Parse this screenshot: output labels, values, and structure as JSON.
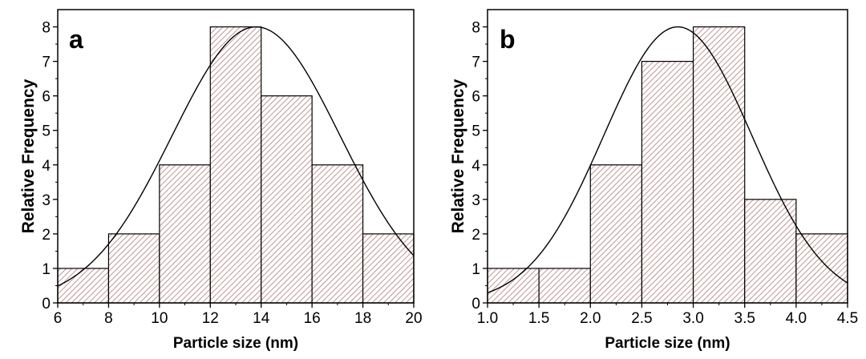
{
  "chart_data": [
    {
      "type": "bar",
      "panel_label": "a",
      "xlabel": "Particle size (nm)",
      "ylabel": "Relative Frequency",
      "xlim": [
        6,
        20
      ],
      "ylim": [
        0,
        8.5
      ],
      "xticks": [
        "6",
        "8",
        "10",
        "12",
        "14",
        "16",
        "18",
        "20"
      ],
      "yticks": [
        "0",
        "1",
        "2",
        "3",
        "4",
        "5",
        "6",
        "7",
        "8"
      ],
      "bins": [
        {
          "from": 6,
          "to": 8,
          "value": 1
        },
        {
          "from": 8,
          "to": 10,
          "value": 2
        },
        {
          "from": 10,
          "to": 12,
          "value": 4
        },
        {
          "from": 12,
          "to": 14,
          "value": 8
        },
        {
          "from": 14,
          "to": 16,
          "value": 6
        },
        {
          "from": 16,
          "to": 18,
          "value": 4
        },
        {
          "from": 18,
          "to": 20,
          "value": 2
        }
      ],
      "fit_curve": {
        "type": "gaussian",
        "peak_x": 13.8,
        "peak_y": 8.0,
        "sigma": 3.3
      },
      "fill_color": "#b07a7a",
      "grid": false
    },
    {
      "type": "bar",
      "panel_label": "b",
      "xlabel": "Particle size (nm)",
      "ylabel": "Relative Frequency",
      "xlim": [
        1.0,
        4.5
      ],
      "ylim": [
        0,
        8.5
      ],
      "xticks": [
        "1.0",
        "1.5",
        "2.0",
        "2.5",
        "3.0",
        "3.5",
        "4.0",
        "4.5"
      ],
      "yticks": [
        "0",
        "1",
        "2",
        "3",
        "4",
        "5",
        "6",
        "7",
        "8"
      ],
      "bins": [
        {
          "from": 1.0,
          "to": 1.5,
          "value": 1
        },
        {
          "from": 1.5,
          "to": 2.0,
          "value": 1
        },
        {
          "from": 2.0,
          "to": 2.5,
          "value": 4
        },
        {
          "from": 2.5,
          "to": 3.0,
          "value": 7
        },
        {
          "from": 3.0,
          "to": 3.5,
          "value": 8
        },
        {
          "from": 3.5,
          "to": 4.0,
          "value": 3
        },
        {
          "from": 4.0,
          "to": 4.5,
          "value": 2
        }
      ],
      "fit_curve": {
        "type": "gaussian",
        "peak_x": 2.85,
        "peak_y": 8.0,
        "sigma": 0.72
      },
      "fill_color": "#b07a7a",
      "grid": false
    }
  ]
}
